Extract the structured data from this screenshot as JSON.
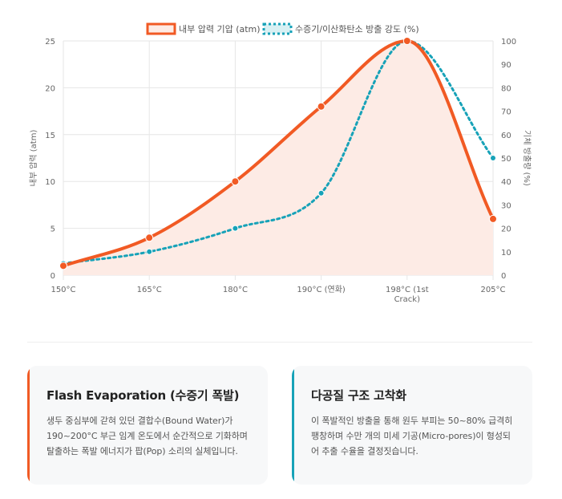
{
  "chart_data": {
    "type": "line",
    "categories": [
      "150°C",
      "165°C",
      "180°C",
      "190°C (연화)",
      "198°C (1st Crack)",
      "205°C"
    ],
    "category_lines": [
      [
        "150°C"
      ],
      [
        "165°C"
      ],
      [
        "180°C"
      ],
      [
        "190°C (연화)"
      ],
      [
        "198°C (1st",
        "Crack)"
      ],
      [
        "205°C"
      ]
    ],
    "series": [
      {
        "name": "내부 압력 기압 (atm)",
        "axis": "left",
        "color": "#f15a24",
        "fill": "#fdebe5",
        "style": "solid",
        "values": [
          1,
          4,
          10,
          18,
          25,
          6
        ]
      },
      {
        "name": "수증기/이산화탄소 방출 강도 (%)",
        "axis": "right",
        "color": "#17a2b8",
        "fill": "#d8f0f3",
        "style": "dotted",
        "values": [
          5,
          10,
          20,
          35,
          100,
          50
        ]
      }
    ],
    "ylabel_left": "내부 압력 (atm)",
    "ylabel_right": "기체 방출량 (%)",
    "ylim_left": [
      0,
      25
    ],
    "ylim_right": [
      0,
      100
    ],
    "yticks_left": [
      0,
      5,
      10,
      15,
      20,
      25
    ],
    "yticks_right": [
      0,
      10,
      20,
      30,
      40,
      50,
      60,
      70,
      80,
      90,
      100
    ],
    "legend_position": "top-center",
    "grid": true
  },
  "cards": [
    {
      "title": "Flash Evaporation (수증기 폭발)",
      "body": "생두 중심부에 갇혀 있던 결합수(Bound Water)가 190~200°C 부근 임계 온도에서 순간적으로 기화하며 탈출하는 폭발 에너지가 팝(Pop) 소리의 실체입니다.",
      "accent": "#f15a24"
    },
    {
      "title": "다공질 구조 고착화",
      "body": "이 폭발적인 방출을 통해 원두 부피는 50~80% 급격히 팽창하며 수만 개의 미세 기공(Micro-pores)이 형성되어 추출 수율을 결정짓습니다.",
      "accent": "#17a2b8"
    }
  ]
}
